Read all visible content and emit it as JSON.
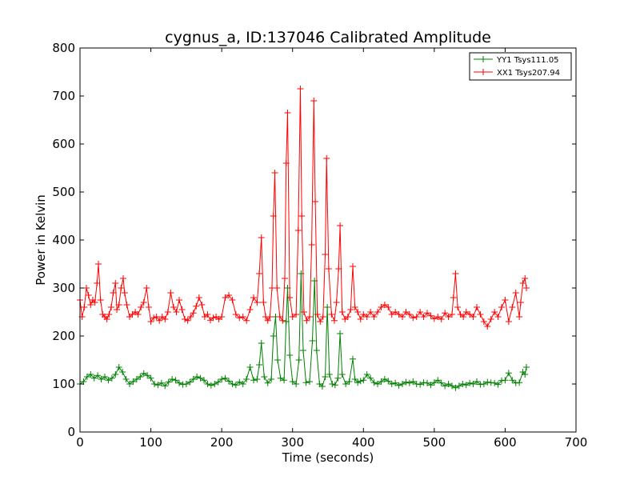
{
  "chart_data": {
    "type": "line",
    "title": "cygnus_a, ID:137046 Calibrated Amplitude",
    "xlabel": "Time (seconds)",
    "ylabel": "Power in Kelvin",
    "xlim": [
      0,
      700
    ],
    "ylim": [
      0,
      800
    ],
    "xticks": [
      0,
      100,
      200,
      300,
      400,
      500,
      600,
      700
    ],
    "yticks": [
      0,
      100,
      200,
      300,
      400,
      500,
      600,
      700,
      800
    ],
    "grid": false,
    "legend_position": "top-right",
    "marker": "+",
    "series": [
      {
        "name": "YY1 Tsys111.05",
        "color": "#008000",
        "points": [
          [
            0,
            100
          ],
          [
            5,
            105
          ],
          [
            10,
            115
          ],
          [
            15,
            120
          ],
          [
            20,
            112
          ],
          [
            25,
            118
          ],
          [
            30,
            110
          ],
          [
            35,
            115
          ],
          [
            40,
            108
          ],
          [
            45,
            112
          ],
          [
            50,
            120
          ],
          [
            55,
            135
          ],
          [
            60,
            125
          ],
          [
            65,
            110
          ],
          [
            70,
            100
          ],
          [
            75,
            105
          ],
          [
            80,
            110
          ],
          [
            85,
            115
          ],
          [
            90,
            122
          ],
          [
            95,
            118
          ],
          [
            100,
            112
          ],
          [
            105,
            100
          ],
          [
            110,
            98
          ],
          [
            115,
            102
          ],
          [
            120,
            96
          ],
          [
            125,
            104
          ],
          [
            130,
            110
          ],
          [
            135,
            108
          ],
          [
            140,
            102
          ],
          [
            145,
            99
          ],
          [
            150,
            100
          ],
          [
            155,
            104
          ],
          [
            160,
            110
          ],
          [
            165,
            115
          ],
          [
            170,
            112
          ],
          [
            175,
            108
          ],
          [
            180,
            100
          ],
          [
            185,
            97
          ],
          [
            190,
            100
          ],
          [
            195,
            104
          ],
          [
            200,
            110
          ],
          [
            205,
            112
          ],
          [
            210,
            106
          ],
          [
            215,
            100
          ],
          [
            220,
            98
          ],
          [
            225,
            104
          ],
          [
            230,
            100
          ],
          [
            235,
            110
          ],
          [
            240,
            135
          ],
          [
            245,
            108
          ],
          [
            250,
            110
          ],
          [
            253,
            140
          ],
          [
            256,
            185
          ],
          [
            260,
            115
          ],
          [
            265,
            102
          ],
          [
            270,
            110
          ],
          [
            273,
            200
          ],
          [
            276,
            240
          ],
          [
            279,
            150
          ],
          [
            283,
            112
          ],
          [
            288,
            108
          ],
          [
            291,
            230
          ],
          [
            293,
            300
          ],
          [
            296,
            160
          ],
          [
            300,
            105
          ],
          [
            305,
            100
          ],
          [
            309,
            150
          ],
          [
            312,
            330
          ],
          [
            315,
            170
          ],
          [
            319,
            103
          ],
          [
            324,
            105
          ],
          [
            328,
            190
          ],
          [
            331,
            315
          ],
          [
            334,
            170
          ],
          [
            338,
            100
          ],
          [
            342,
            95
          ],
          [
            346,
            115
          ],
          [
            349,
            260
          ],
          [
            352,
            120
          ],
          [
            356,
            100
          ],
          [
            360,
            98
          ],
          [
            364,
            112
          ],
          [
            367,
            205
          ],
          [
            370,
            120
          ],
          [
            375,
            100
          ],
          [
            380,
            105
          ],
          [
            385,
            152
          ],
          [
            388,
            110
          ],
          [
            392,
            103
          ],
          [
            396,
            106
          ],
          [
            400,
            108
          ],
          [
            405,
            120
          ],
          [
            410,
            112
          ],
          [
            415,
            103
          ],
          [
            420,
            100
          ],
          [
            425,
            105
          ],
          [
            430,
            110
          ],
          [
            435,
            106
          ],
          [
            440,
            100
          ],
          [
            445,
            102
          ],
          [
            450,
            97
          ],
          [
            455,
            100
          ],
          [
            460,
            104
          ],
          [
            465,
            102
          ],
          [
            470,
            105
          ],
          [
            475,
            100
          ],
          [
            480,
            99
          ],
          [
            485,
            103
          ],
          [
            490,
            102
          ],
          [
            495,
            98
          ],
          [
            500,
            103
          ],
          [
            505,
            108
          ],
          [
            510,
            102
          ],
          [
            515,
            96
          ],
          [
            520,
            100
          ],
          [
            525,
            96
          ],
          [
            530,
            92
          ],
          [
            535,
            96
          ],
          [
            540,
            100
          ],
          [
            545,
            98
          ],
          [
            550,
            102
          ],
          [
            555,
            100
          ],
          [
            560,
            105
          ],
          [
            565,
            99
          ],
          [
            570,
            100
          ],
          [
            575,
            104
          ],
          [
            580,
            103
          ],
          [
            585,
            102
          ],
          [
            590,
            99
          ],
          [
            595,
            107
          ],
          [
            600,
            108
          ],
          [
            605,
            123
          ],
          [
            610,
            108
          ],
          [
            615,
            102
          ],
          [
            620,
            103
          ],
          [
            625,
            125
          ],
          [
            628,
            120
          ],
          [
            630,
            135
          ]
        ]
      },
      {
        "name": "XX1 Tsys207.94",
        "color": "#ff0000",
        "points": [
          [
            0,
            275
          ],
          [
            3,
            240
          ],
          [
            6,
            260
          ],
          [
            9,
            300
          ],
          [
            12,
            285
          ],
          [
            15,
            265
          ],
          [
            18,
            275
          ],
          [
            21,
            270
          ],
          [
            24,
            310
          ],
          [
            26,
            350
          ],
          [
            29,
            275
          ],
          [
            32,
            245
          ],
          [
            35,
            240
          ],
          [
            38,
            235
          ],
          [
            41,
            245
          ],
          [
            44,
            260
          ],
          [
            47,
            290
          ],
          [
            50,
            310
          ],
          [
            52,
            255
          ],
          [
            55,
            265
          ],
          [
            58,
            300
          ],
          [
            61,
            320
          ],
          [
            63,
            290
          ],
          [
            66,
            265
          ],
          [
            70,
            240
          ],
          [
            74,
            245
          ],
          [
            78,
            250
          ],
          [
            82,
            245
          ],
          [
            86,
            260
          ],
          [
            90,
            270
          ],
          [
            94,
            300
          ],
          [
            97,
            260
          ],
          [
            100,
            230
          ],
          [
            104,
            238
          ],
          [
            108,
            240
          ],
          [
            112,
            232
          ],
          [
            116,
            240
          ],
          [
            120,
            235
          ],
          [
            124,
            250
          ],
          [
            128,
            290
          ],
          [
            132,
            260
          ],
          [
            136,
            250
          ],
          [
            140,
            275
          ],
          [
            144,
            255
          ],
          [
            148,
            235
          ],
          [
            152,
            232
          ],
          [
            156,
            240
          ],
          [
            160,
            248
          ],
          [
            164,
            262
          ],
          [
            168,
            280
          ],
          [
            172,
            265
          ],
          [
            176,
            240
          ],
          [
            180,
            245
          ],
          [
            184,
            233
          ],
          [
            188,
            238
          ],
          [
            192,
            240
          ],
          [
            196,
            235
          ],
          [
            200,
            240
          ],
          [
            205,
            280
          ],
          [
            210,
            285
          ],
          [
            215,
            275
          ],
          [
            220,
            245
          ],
          [
            225,
            238
          ],
          [
            230,
            240
          ],
          [
            235,
            232
          ],
          [
            240,
            255
          ],
          [
            245,
            280
          ],
          [
            250,
            270
          ],
          [
            253,
            330
          ],
          [
            256,
            405
          ],
          [
            259,
            270
          ],
          [
            262,
            240
          ],
          [
            265,
            232
          ],
          [
            268,
            240
          ],
          [
            271,
            300
          ],
          [
            273,
            450
          ],
          [
            275,
            540
          ],
          [
            278,
            300
          ],
          [
            282,
            240
          ],
          [
            286,
            232
          ],
          [
            289,
            320
          ],
          [
            291,
            560
          ],
          [
            293,
            665
          ],
          [
            296,
            280
          ],
          [
            300,
            240
          ],
          [
            305,
            245
          ],
          [
            308,
            420
          ],
          [
            311,
            715
          ],
          [
            313,
            450
          ],
          [
            316,
            250
          ],
          [
            320,
            232
          ],
          [
            324,
            240
          ],
          [
            327,
            390
          ],
          [
            330,
            690
          ],
          [
            332,
            480
          ],
          [
            335,
            245
          ],
          [
            339,
            230
          ],
          [
            343,
            240
          ],
          [
            346,
            370
          ],
          [
            348,
            570
          ],
          [
            351,
            340
          ],
          [
            355,
            245
          ],
          [
            359,
            232
          ],
          [
            362,
            270
          ],
          [
            365,
            340
          ],
          [
            367,
            430
          ],
          [
            370,
            250
          ],
          [
            374,
            235
          ],
          [
            378,
            240
          ],
          [
            382,
            255
          ],
          [
            385,
            345
          ],
          [
            388,
            260
          ],
          [
            392,
            250
          ],
          [
            396,
            235
          ],
          [
            400,
            245
          ],
          [
            405,
            240
          ],
          [
            410,
            250
          ],
          [
            415,
            240
          ],
          [
            420,
            250
          ],
          [
            425,
            260
          ],
          [
            430,
            265
          ],
          [
            435,
            260
          ],
          [
            440,
            245
          ],
          [
            445,
            250
          ],
          [
            450,
            245
          ],
          [
            455,
            240
          ],
          [
            460,
            250
          ],
          [
            465,
            245
          ],
          [
            470,
            238
          ],
          [
            475,
            240
          ],
          [
            480,
            250
          ],
          [
            485,
            240
          ],
          [
            490,
            248
          ],
          [
            495,
            242
          ],
          [
            500,
            236
          ],
          [
            505,
            240
          ],
          [
            510,
            235
          ],
          [
            515,
            248
          ],
          [
            520,
            240
          ],
          [
            525,
            245
          ],
          [
            527,
            280
          ],
          [
            530,
            330
          ],
          [
            533,
            260
          ],
          [
            537,
            245
          ],
          [
            541,
            240
          ],
          [
            545,
            250
          ],
          [
            550,
            245
          ],
          [
            555,
            240
          ],
          [
            560,
            260
          ],
          [
            565,
            245
          ],
          [
            570,
            230
          ],
          [
            575,
            220
          ],
          [
            580,
            235
          ],
          [
            585,
            250
          ],
          [
            590,
            240
          ],
          [
            595,
            260
          ],
          [
            600,
            275
          ],
          [
            605,
            230
          ],
          [
            610,
            260
          ],
          [
            615,
            290
          ],
          [
            620,
            240
          ],
          [
            622,
            270
          ],
          [
            625,
            310
          ],
          [
            628,
            320
          ],
          [
            630,
            300
          ]
        ]
      }
    ]
  }
}
